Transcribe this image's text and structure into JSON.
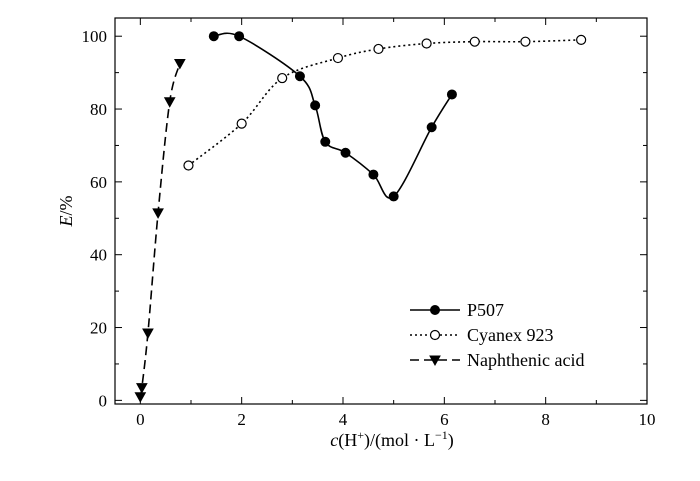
{
  "chart_data": {
    "type": "line",
    "xlabel": {
      "var": "c",
      "open": "(H",
      "sup": "+",
      "mid": ")/(mol · L",
      "sup2": "−1",
      "close": ")"
    },
    "ylabel": {
      "var": "E",
      "unit": "/%"
    },
    "xlim": [
      -0.5,
      10
    ],
    "ylim": [
      -1,
      105
    ],
    "xticks": [
      0,
      2,
      4,
      6,
      8,
      10
    ],
    "yticks": [
      0,
      20,
      40,
      60,
      80,
      100
    ],
    "x_minor": [
      1,
      3,
      5,
      7,
      9
    ],
    "y_minor": [
      10,
      30,
      50,
      70,
      90
    ],
    "legend_position": "lower-right",
    "series": [
      {
        "name": "P507",
        "style": "solid",
        "marker": "filled-circle",
        "x": [
          1.45,
          1.95,
          3.15,
          3.45,
          3.65,
          4.05,
          4.6,
          5.0,
          5.75,
          6.15
        ],
        "y": [
          100,
          100,
          89,
          81,
          71,
          68,
          62,
          56,
          75,
          84
        ]
      },
      {
        "name": "Cyanex 923",
        "style": "dotted",
        "marker": "open-circle",
        "x": [
          0.95,
          2.0,
          2.8,
          3.9,
          4.7,
          5.65,
          6.6,
          7.6,
          8.7
        ],
        "y": [
          64.5,
          76,
          88.5,
          94,
          96.5,
          98,
          98.5,
          98.5,
          99
        ]
      },
      {
        "name": "Naphthenic acid",
        "style": "dashed",
        "marker": "filled-triangle-down",
        "x": [
          0.0,
          0.03,
          0.15,
          0.35,
          0.58,
          0.78
        ],
        "y": [
          1,
          3.5,
          18.5,
          51.5,
          82,
          92.5
        ]
      }
    ]
  }
}
